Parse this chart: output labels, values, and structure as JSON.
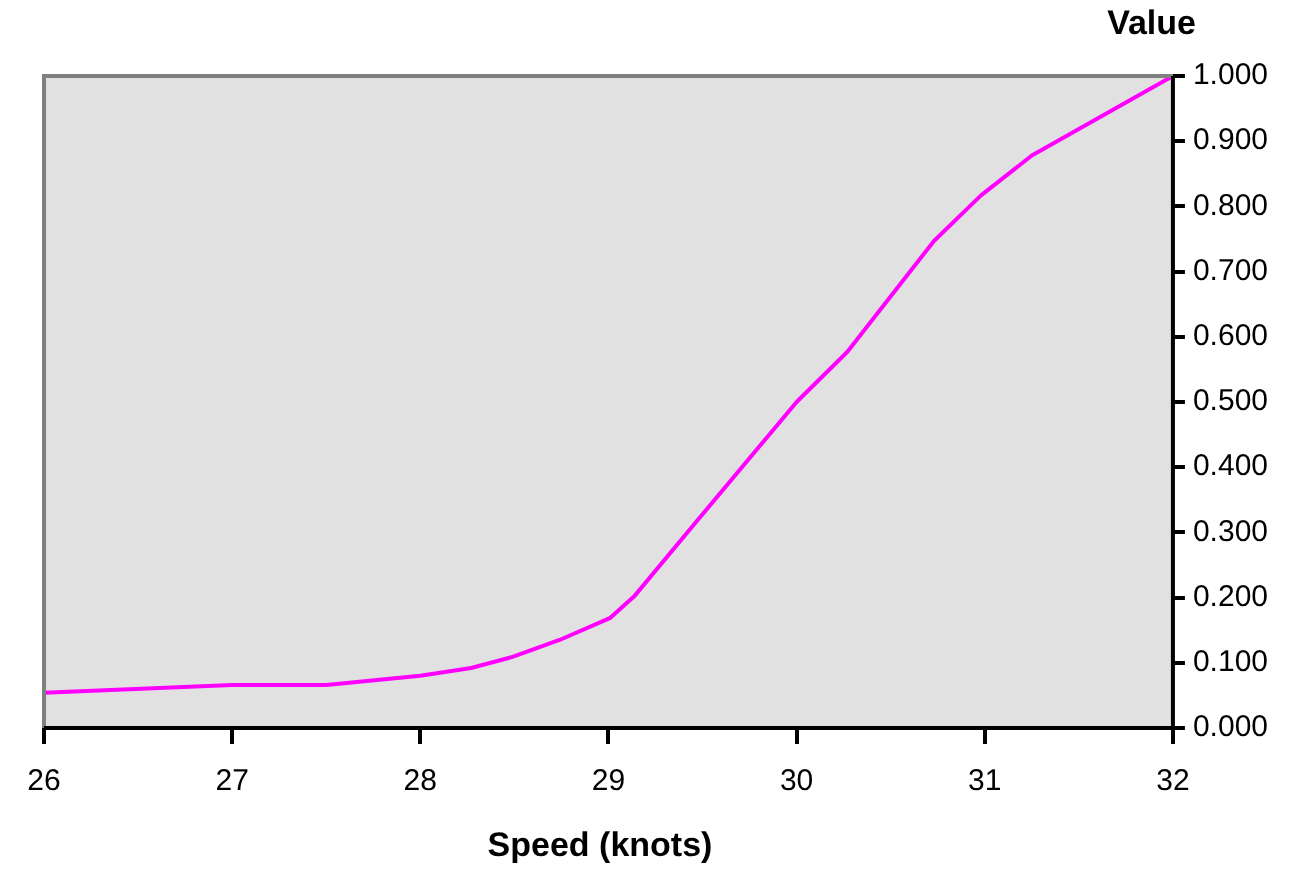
{
  "chart_data": {
    "type": "line",
    "ylabel": "Value",
    "xlabel": "Speed (knots)",
    "x": [
      26,
      27,
      27.5,
      28,
      28.27,
      28.49,
      28.74,
      29.01,
      29.14,
      29.46,
      30,
      30.27,
      30.73,
      30.98,
      31.25,
      32
    ],
    "series": [
      {
        "color": "#ff00ff",
        "values": [
          0.054,
          0.066,
          0.066,
          0.08,
          0.092,
          0.109,
          0.135,
          0.169,
          0.203,
          0.314,
          0.5,
          0.577,
          0.747,
          0.817,
          0.878,
          1.0
        ]
      }
    ],
    "xlim": [
      26,
      32
    ],
    "xticks": [
      26,
      27,
      28,
      29,
      30,
      31,
      32
    ],
    "ylim": [
      0,
      1
    ],
    "yticks": [
      {
        "value": 0,
        "label": "0.000"
      },
      {
        "value": 0.1,
        "label": "0.100"
      },
      {
        "value": 0.2,
        "label": "0.200"
      },
      {
        "value": 0.3,
        "label": "0.300"
      },
      {
        "value": 0.4,
        "label": "0.400"
      },
      {
        "value": 0.5,
        "label": "0.500"
      },
      {
        "value": 0.6,
        "label": "0.600"
      },
      {
        "value": 0.7,
        "label": "0.700"
      },
      {
        "value": 0.8,
        "label": "0.800"
      },
      {
        "value": 0.9,
        "label": "0.900"
      },
      {
        "value": 1.0,
        "label": "1.000"
      }
    ],
    "grid": false,
    "legend": false,
    "marker": "none",
    "line_style": "solid"
  }
}
